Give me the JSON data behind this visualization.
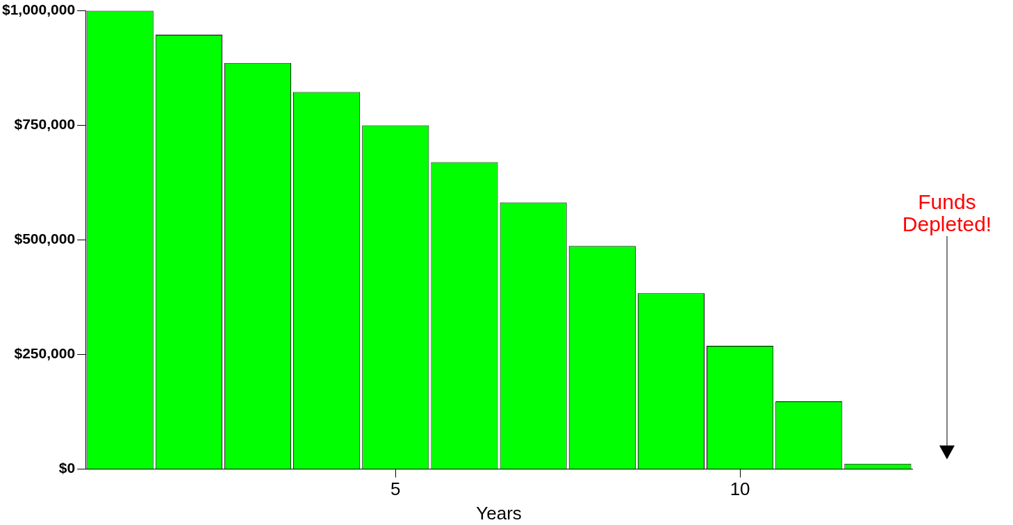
{
  "chart_data": {
    "type": "bar",
    "x": [
      1,
      2,
      3,
      4,
      5,
      6,
      7,
      8,
      9,
      10,
      11,
      12
    ],
    "values": [
      1000000,
      948000,
      886000,
      823000,
      750000,
      670000,
      582000,
      487000,
      384000,
      269000,
      148000,
      12000
    ],
    "color": "#00ff00",
    "xlabel": "Years",
    "xlim": [
      0.5,
      12.5
    ],
    "xticks": [
      5,
      10
    ],
    "ylim": [
      0,
      1000000
    ],
    "yticks": [
      {
        "value": 0,
        "label": "$0"
      },
      {
        "value": 250000,
        "label": "$250,000"
      },
      {
        "value": 500000,
        "label": "$500,000"
      },
      {
        "value": 750000,
        "label": "$750,000"
      },
      {
        "value": 1000000,
        "label": "$1,000,000"
      }
    ],
    "grid": false,
    "legend": false,
    "annotations": [
      "Funds Depleted!"
    ]
  }
}
